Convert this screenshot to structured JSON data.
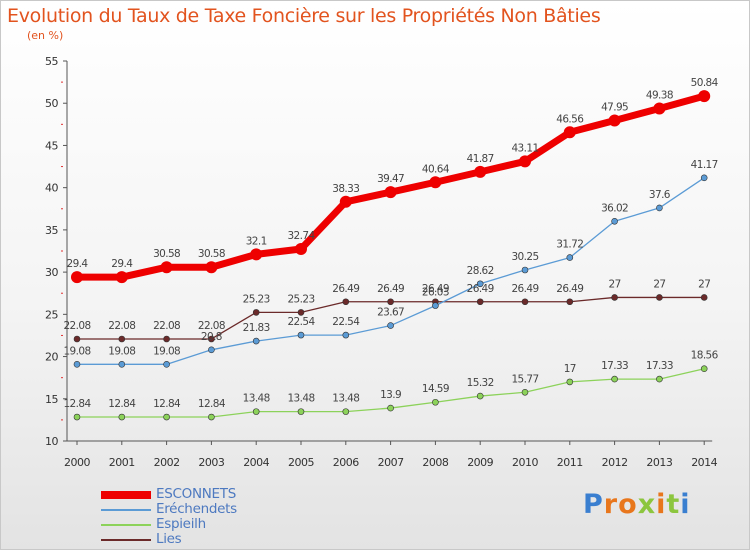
{
  "title": "Evolution du Taux de Taxe Foncière sur les Propriétés Non Bâties",
  "subtitle": "(en %)",
  "logo": "Proxiti",
  "colors": {
    "title": "#e2531e",
    "ESCONNETS": "#ee0000",
    "Eréchendets": "#5b9bd5",
    "Espieilh": "#8cd25a",
    "Lies": "#6b2a2a"
  },
  "chart_data": {
    "type": "line",
    "title": "Evolution du Taux de Taxe Foncière sur les Propriétés Non Bâties",
    "ylabel": "(en %)",
    "xlabel": "",
    "x": [
      "2000",
      "2001",
      "2002",
      "2003",
      "2004",
      "2005",
      "2006",
      "2007",
      "2008",
      "2009",
      "2010",
      "2011",
      "2012",
      "2013",
      "2014"
    ],
    "ylim": [
      10,
      55
    ],
    "yticks": [
      "10",
      "15",
      "20",
      "25",
      "30",
      "35",
      "40",
      "45",
      "50",
      "55"
    ],
    "grid": false,
    "legend": "bottom-left",
    "series": [
      {
        "name": "ESCONNETS",
        "values": [
          29.4,
          29.4,
          30.58,
          30.58,
          32.1,
          32.74,
          38.33,
          39.47,
          40.64,
          41.87,
          43.11,
          46.56,
          47.95,
          49.38,
          50.84
        ],
        "labels": [
          "29.4",
          "29.4",
          "30.58",
          "30.58",
          "32.1",
          "32.74",
          "38.33",
          "39.47",
          "40.64",
          "41.87",
          "43.11",
          "46.56",
          "47.95",
          "49.38",
          "50.84"
        ]
      },
      {
        "name": "Eréchendets",
        "values": [
          19.08,
          19.08,
          19.08,
          20.8,
          21.83,
          22.54,
          22.54,
          23.67,
          26.03,
          28.62,
          30.25,
          31.72,
          36.02,
          37.6,
          41.17
        ],
        "labels": [
          "19.08",
          "19.08",
          "19.08",
          "20.8",
          "21.83",
          "22.54",
          "22.54",
          "23.67",
          "26.03",
          "28.62",
          "30.25",
          "31.72",
          "36.02",
          "37.6",
          "41.17"
        ]
      },
      {
        "name": "Espieilh",
        "values": [
          12.84,
          12.84,
          12.84,
          12.84,
          13.48,
          13.48,
          13.48,
          13.9,
          14.59,
          15.32,
          15.77,
          17,
          17.33,
          17.33,
          18.56
        ],
        "labels": [
          "12.84",
          "12.84",
          "12.84",
          "12.84",
          "13.48",
          "13.48",
          "13.48",
          "13.9",
          "14.59",
          "15.32",
          "15.77",
          "17",
          "17.33",
          "17.33",
          "18.56"
        ]
      },
      {
        "name": "Lies",
        "values": [
          22.08,
          22.08,
          22.08,
          22.08,
          25.23,
          25.23,
          26.49,
          26.49,
          26.49,
          26.49,
          26.49,
          26.49,
          27,
          27,
          27
        ],
        "labels": [
          "22.08",
          "22.08",
          "22.08",
          "22.08",
          "25.23",
          "25.23",
          "26.49",
          "26.49",
          "26.49",
          "26.49",
          "26.49",
          "26.49",
          "27",
          "27",
          "27"
        ]
      }
    ]
  }
}
